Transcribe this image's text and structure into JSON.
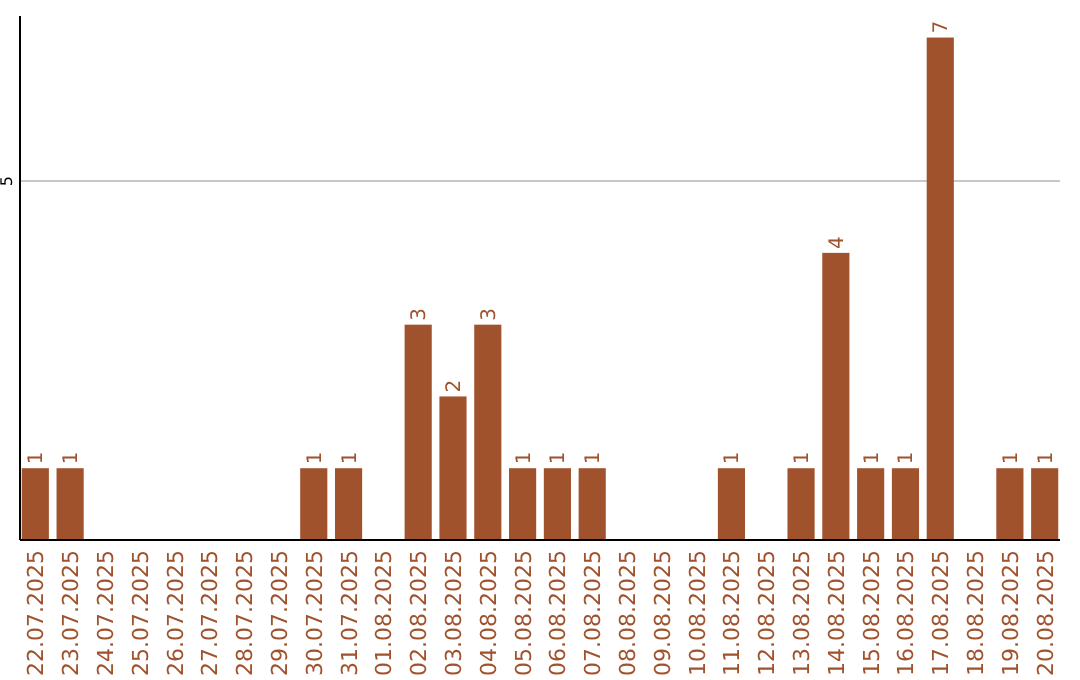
{
  "chart_data": {
    "type": "bar",
    "categories": [
      "22.07.2025",
      "23.07.2025",
      "24.07.2025",
      "25.07.2025",
      "26.07.2025",
      "27.07.2025",
      "28.07.2025",
      "29.07.2025",
      "30.07.2025",
      "31.07.2025",
      "01.08.2025",
      "02.08.2025",
      "03.08.2025",
      "04.08.2025",
      "05.08.2025",
      "06.08.2025",
      "07.08.2025",
      "08.08.2025",
      "09.08.2025",
      "10.08.2025",
      "11.08.2025",
      "12.08.2025",
      "13.08.2025",
      "14.08.2025",
      "15.08.2025",
      "16.08.2025",
      "17.08.2025",
      "18.08.2025",
      "19.08.2025",
      "20.08.2025"
    ],
    "values": [
      1,
      1,
      0,
      0,
      0,
      0,
      0,
      0,
      1,
      1,
      0,
      3,
      2,
      3,
      1,
      1,
      1,
      0,
      0,
      0,
      1,
      0,
      1,
      4,
      1,
      1,
      7,
      0,
      1,
      1
    ],
    "value_labels": [
      "1",
      "1",
      null,
      null,
      null,
      null,
      null,
      null,
      "1",
      "1",
      null,
      "3",
      "2",
      "3",
      "1",
      "1",
      "1",
      null,
      null,
      null,
      "1",
      null,
      "1",
      "4",
      "1",
      "1",
      "7",
      null,
      "1",
      "1"
    ],
    "color": "#a0522d",
    "ylim": [
      0,
      7.3
    ],
    "yticks": [
      5
    ],
    "grid": "y"
  }
}
